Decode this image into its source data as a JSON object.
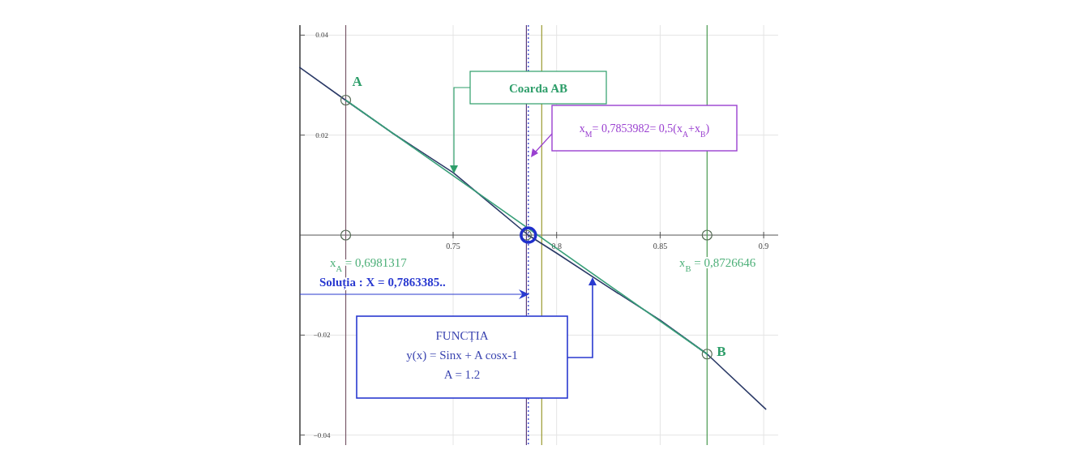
{
  "chart_data": {
    "type": "line",
    "xlim": [
      0.676,
      0.907
    ],
    "ylim": [
      -0.042,
      0.042
    ],
    "xticks": [
      0.75,
      0.8,
      0.85,
      0.9
    ],
    "yticks": [
      {
        "value": -0.04,
        "label": "−0.04"
      },
      {
        "value": -0.02,
        "label": "−0.02"
      },
      0.02,
      0.04
    ],
    "grid": true,
    "series": [
      {
        "color": "#2b3a67",
        "x": [
          0.676,
          0.698,
          0.72,
          0.75,
          0.7863,
          0.8,
          0.825,
          0.85,
          0.8727,
          0.901
        ],
        "values": [
          0.0335,
          0.027,
          0.0206,
          0.0125,
          0,
          -0.0036,
          -0.0104,
          -0.017,
          -0.0238,
          -0.0348
        ]
      },
      {
        "color": "#3aa07a",
        "x": [
          0.6981317,
          0.8726646
        ],
        "values": [
          0.027,
          -0.0238
        ]
      },
      {
        "type": "scatter",
        "color": "#556b55",
        "marker": "circle",
        "x": [
          0.6981317,
          0.8726646,
          0.6981317,
          0.8726646,
          0.7853982
        ],
        "values": [
          0.027,
          -0.0238,
          0,
          0,
          0
        ]
      },
      {
        "type": "scatter",
        "color": "#1f2fcc",
        "marker": "circle",
        "x": [
          0.7863385
        ],
        "values": [
          0
        ]
      }
    ],
    "ref_lines": [
      {
        "axis": "x",
        "value": 0.6981317,
        "color": "#7a5a6a"
      },
      {
        "axis": "x",
        "value": 0.8726646,
        "color": "#4a9a50"
      },
      {
        "axis": "x",
        "value": 0.7853982,
        "color": "#5a3a7a"
      },
      {
        "axis": "x",
        "value": 0.7928,
        "color": "#9a9a30"
      },
      {
        "axis": "x",
        "value": 0.7863385,
        "color": "#1f2fcc",
        "line_style": "dotted"
      }
    ],
    "annotations": [
      {
        "text": "A",
        "x": 0.6981317,
        "y": 0.027
      },
      {
        "text": "B",
        "x": 0.8726646,
        "y": -0.0238
      },
      "Coarda AB",
      "x$_{M}$= 0,7853982= 0,5(x$_{A}$+x$_{B}$)",
      "x$_{A}$ = 0,6981317",
      "x$_{B}$ = 0,8726646",
      "Soluția : X = 0,7863385..",
      "FUNCȚIA",
      "y(x) = Sinx + A cosx-1",
      "A = 1.2"
    ]
  }
}
